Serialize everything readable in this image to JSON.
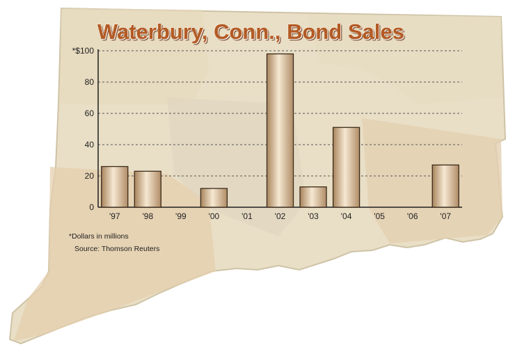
{
  "colors": {
    "map_fill": "#e9dfc6",
    "map_stroke": "#cfc3a6",
    "bar_light": "#f6e8d2",
    "bar_dark": "#a8845c",
    "bar_stroke": "#3a2a1a",
    "title": "#b35a24"
  },
  "chart_data": {
    "type": "bar",
    "title": "Waterbury, Conn., Bond Sales",
    "categories": [
      "'97",
      "'98",
      "'99",
      "'00",
      "'01",
      "'02",
      "'03",
      "'04",
      "'05",
      "'06",
      "'07"
    ],
    "values": [
      26,
      23,
      0,
      12,
      0,
      98,
      13,
      51,
      0,
      0,
      27
    ],
    "ylim": [
      0,
      100
    ],
    "yticks": [
      "0",
      "20",
      "40",
      "60",
      "80",
      "*$100"
    ],
    "ytick_values": [
      0,
      20,
      40,
      60,
      80,
      100
    ],
    "grid": "horizontal dashed",
    "xlabel": "",
    "ylabel": ""
  },
  "footnotes": {
    "units": "*Dollars in millions",
    "source": "Source: Thomson Reuters"
  }
}
